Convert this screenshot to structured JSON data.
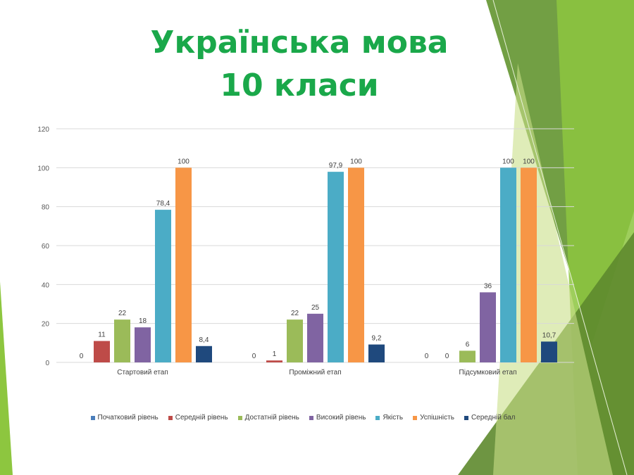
{
  "slide": {
    "title_line1": "Українська мова",
    "title_line2": "10 класи",
    "title_color": "#1aa84a",
    "accent_greens": [
      "#6a9a3a",
      "#8dc63f",
      "#5e8a2e",
      "#c9e089"
    ]
  },
  "chart_data": {
    "type": "bar",
    "categories": [
      "Стартовий етап",
      "Проміжний етап",
      "Підсумковий етап"
    ],
    "ylim": [
      0,
      120
    ],
    "yticks": [
      0,
      20,
      40,
      60,
      80,
      100,
      120
    ],
    "grid": true,
    "legend_position": "bottom",
    "series": [
      {
        "name": "Початковий рівень",
        "color": "#4a7ebb",
        "values": [
          0,
          0,
          0
        ],
        "labels": [
          "0",
          "0",
          "0"
        ]
      },
      {
        "name": "Середній рівень",
        "color": "#be4b48",
        "values": [
          11,
          1,
          0
        ],
        "labels": [
          "11",
          "1",
          "0"
        ]
      },
      {
        "name": "Достатній рівень",
        "color": "#9bbb59",
        "values": [
          22,
          22,
          6
        ],
        "labels": [
          "22",
          "22",
          "6"
        ]
      },
      {
        "name": "Високий рівень",
        "color": "#8064a2",
        "values": [
          18,
          25,
          36
        ],
        "labels": [
          "18",
          "25",
          "36"
        ]
      },
      {
        "name": "Якість",
        "color": "#4bacc6",
        "values": [
          78.4,
          97.9,
          100
        ],
        "labels": [
          "78,4",
          "97,9",
          "100"
        ]
      },
      {
        "name": "Успішність",
        "color": "#f79646",
        "values": [
          100,
          100,
          100
        ],
        "labels": [
          "100",
          "100",
          "100"
        ]
      },
      {
        "name": "Середній бал",
        "color": "#1f497d",
        "values": [
          8.4,
          9.2,
          10.7
        ],
        "labels": [
          "8,4",
          "9,2",
          "10,7"
        ]
      }
    ]
  }
}
